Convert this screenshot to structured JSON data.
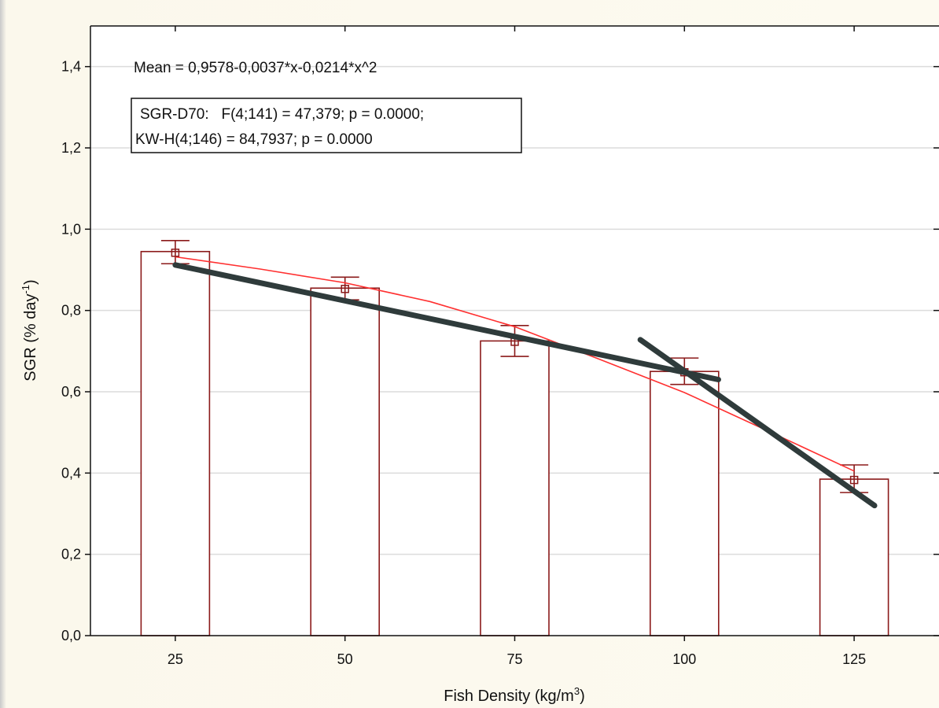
{
  "chart_data": {
    "type": "bar",
    "xlabel": "Fish Density (kg/m",
    "xlabel_sup": "3",
    "xlabel_end": ")",
    "ylabel": "SGR (% day",
    "ylabel_sup": "-1",
    "ylabel_end": ")",
    "categories": [
      25,
      50,
      75,
      100,
      125
    ],
    "values": [
      0.945,
      0.855,
      0.725,
      0.65,
      0.385
    ],
    "markers": [
      0.942,
      0.853,
      0.723,
      0.648,
      0.383
    ],
    "error_high": [
      0.972,
      0.882,
      0.763,
      0.683,
      0.42
    ],
    "error_low": [
      0.915,
      0.826,
      0.687,
      0.618,
      0.352
    ],
    "ylim": [
      0.0,
      1.5
    ],
    "yticks": [
      "0,0",
      "0,2",
      "0,4",
      "0,6",
      "0,8",
      "1,0",
      "1,2",
      "1,4"
    ],
    "ytick_values": [
      0.0,
      0.2,
      0.4,
      0.6,
      0.8,
      1.0,
      1.2,
      1.4
    ],
    "xlim": [
      12.5,
      137.5
    ],
    "grid": true,
    "fit_coefficients": [
      0.9578,
      -0.0037,
      -0.0214
    ],
    "fit_curve": [
      {
        "x": 25,
        "y": 0.932
      },
      {
        "x": 37.5,
        "y": 0.902
      },
      {
        "x": 50,
        "y": 0.868
      },
      {
        "x": 62.5,
        "y": 0.822
      },
      {
        "x": 75,
        "y": 0.76
      },
      {
        "x": 87.5,
        "y": 0.68
      },
      {
        "x": 100,
        "y": 0.598
      },
      {
        "x": 112.5,
        "y": 0.502
      },
      {
        "x": 125,
        "y": 0.405
      }
    ],
    "trend_lines": [
      {
        "x1": 25,
        "y1": 0.912,
        "x2": 105,
        "y2": 0.63
      },
      {
        "x1": 93.5,
        "y1": 0.728,
        "x2": 128,
        "y2": 0.32
      }
    ],
    "annotations": {
      "equation": "Mean = 0,9578-0,0037*x-0,0214*x^2",
      "stats_line1": "SGR-D70:   F(4;141) = 47,379; p = 0.0000;",
      "stats_line2": "KW-H(4;146) = 84,7937; p = 0.0000"
    },
    "colors": {
      "bar_edge": "#8b1a1a",
      "bar_fill": "#ffffff",
      "fit": "#ff3030",
      "trend": "#2f3b3b",
      "grid": "#dcdcdc"
    }
  }
}
